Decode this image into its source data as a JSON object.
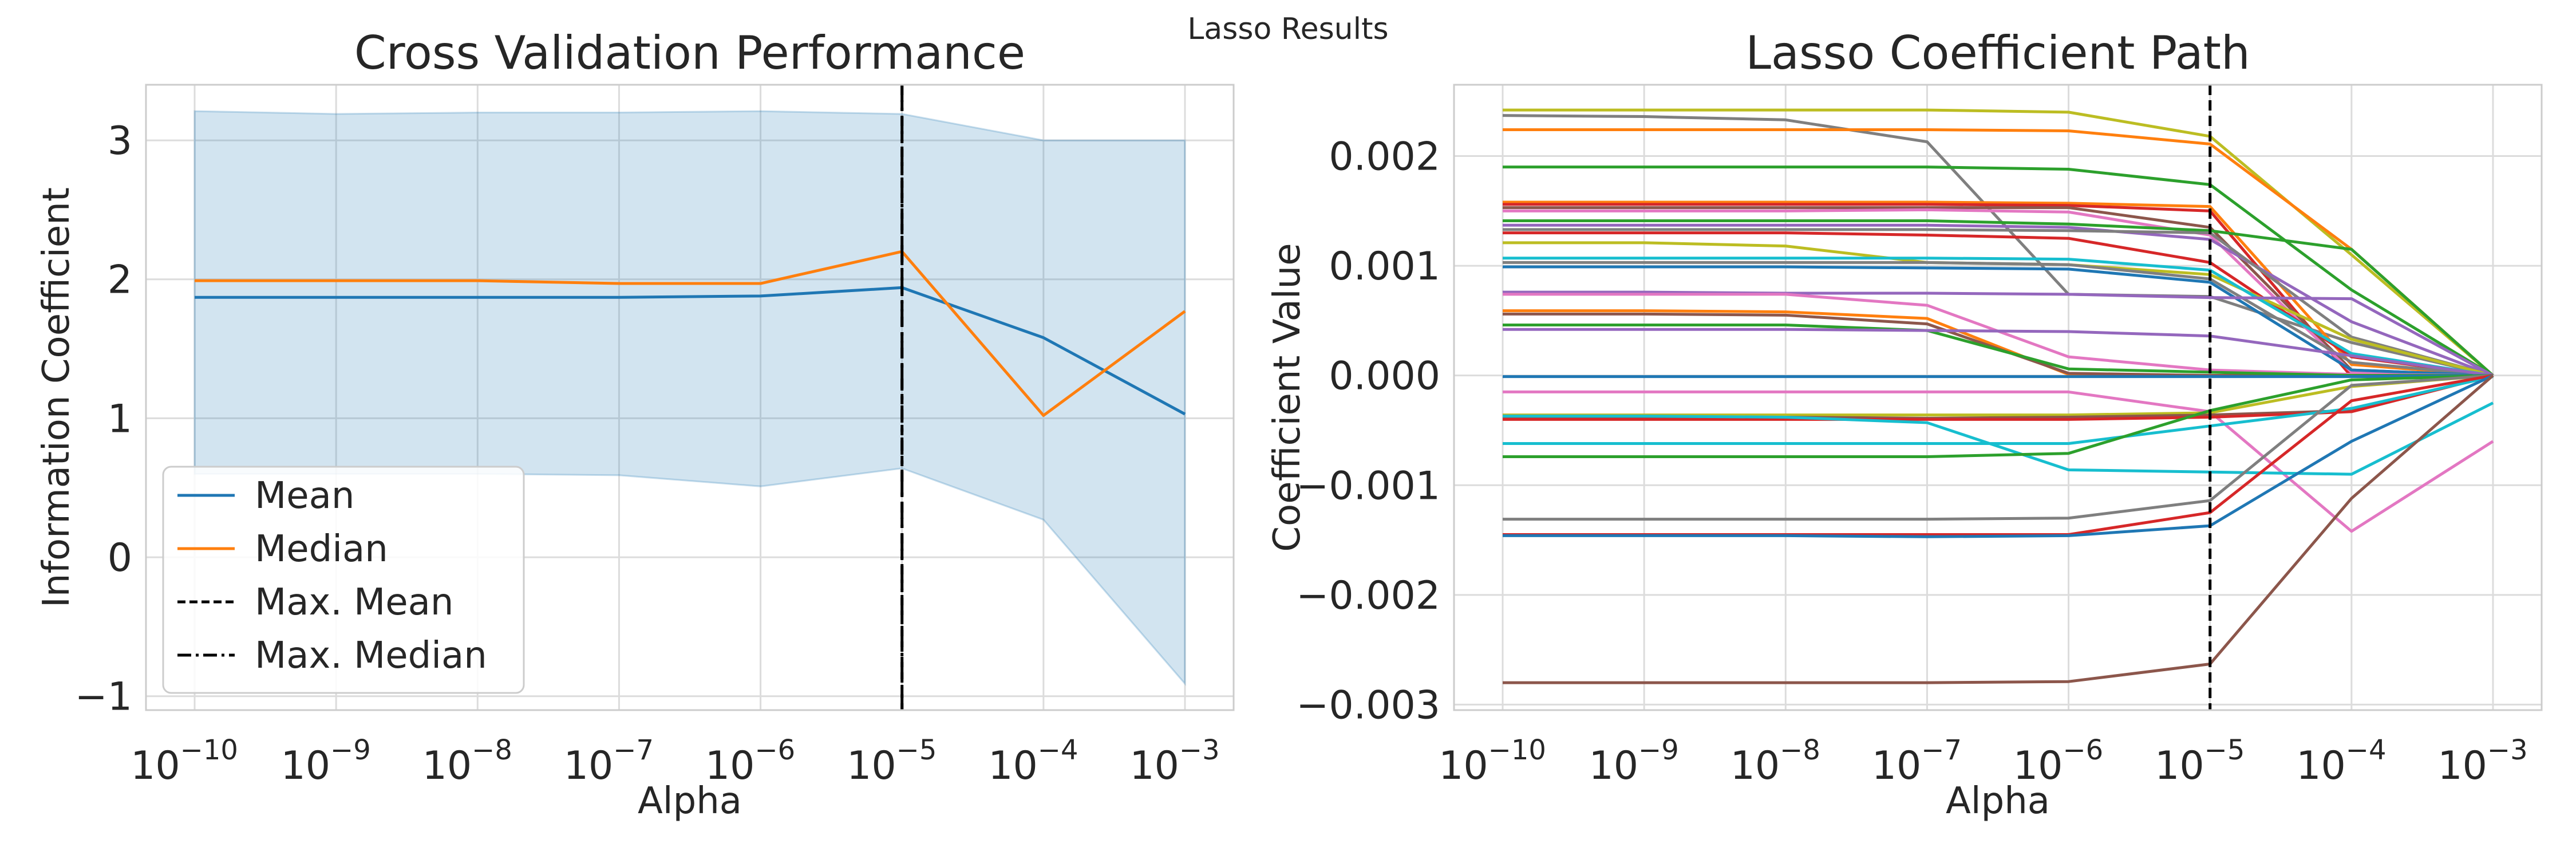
{
  "figure": {
    "suptitle": "Lasso Results"
  },
  "chart_data": [
    {
      "type": "line",
      "title": "Cross Validation Performance",
      "xlabel": "Alpha",
      "ylabel": "Information Coefficient",
      "xscale": "log",
      "x": [
        1e-10,
        1e-09,
        1e-08,
        1e-07,
        1e-06,
        1e-05,
        0.0001,
        0.001
      ],
      "xticks": [
        1e-10,
        1e-09,
        1e-08,
        1e-07,
        1e-06,
        1e-05,
        0.0001,
        0.001
      ],
      "xtick_exponents": [
        "−10",
        "−9",
        "−8",
        "−7",
        "−6",
        "−5",
        "−4",
        "−3"
      ],
      "ylim": [
        -1.1,
        3.4
      ],
      "yticks": [
        -1,
        0,
        1,
        2,
        3
      ],
      "ytick_labels": [
        "−1",
        "0",
        "1",
        "2",
        "3"
      ],
      "grid": true,
      "legend_position": "lower-left",
      "series": [
        {
          "name": "Mean",
          "color": "#1f77b4",
          "values": [
            1.87,
            1.87,
            1.87,
            1.87,
            1.88,
            1.94,
            1.58,
            1.03
          ]
        },
        {
          "name": "Median",
          "color": "#ff7f0e",
          "values": [
            1.99,
            1.99,
            1.99,
            1.97,
            1.97,
            2.2,
            1.02,
            1.77
          ]
        }
      ],
      "band": {
        "color": "#1f77b4",
        "opacity": 0.2,
        "upper": [
          3.21,
          3.19,
          3.2,
          3.2,
          3.21,
          3.19,
          3.0,
          3.0
        ],
        "lower": [
          0.6,
          0.6,
          0.6,
          0.59,
          0.51,
          0.64,
          0.27,
          -0.91
        ]
      },
      "vlines": [
        {
          "name": "Max. Mean",
          "x": 1e-05,
          "style": "dashed",
          "color": "#000000"
        },
        {
          "name": "Max. Median",
          "x": 1e-05,
          "style": "dashdot",
          "color": "#000000"
        }
      ]
    },
    {
      "type": "line",
      "title": "Lasso Coefficient Path",
      "xlabel": "Alpha",
      "ylabel": "Coefficient Value",
      "xscale": "log",
      "x": [
        1e-10,
        1e-09,
        1e-08,
        1e-07,
        1e-06,
        1e-05,
        0.0001,
        0.001
      ],
      "xticks": [
        1e-10,
        1e-09,
        1e-08,
        1e-07,
        1e-06,
        1e-05,
        0.0001,
        0.001
      ],
      "xtick_exponents": [
        "−10",
        "−9",
        "−8",
        "−7",
        "−6",
        "−5",
        "−4",
        "−3"
      ],
      "ylim": [
        -0.00305,
        0.00265
      ],
      "yticks": [
        -0.003,
        -0.002,
        -0.001,
        0.0,
        0.001,
        0.002
      ],
      "ytick_labels": [
        "−0.003",
        "−0.002",
        "−0.001",
        "0.000",
        "0.001",
        "0.002"
      ],
      "grid": true,
      "vlines": [
        {
          "x": 1e-05,
          "style": "dashed",
          "color": "#000000"
        }
      ],
      "series": [
        {
          "color": "#bcbd22",
          "values": [
            0.00242,
            0.00242,
            0.00242,
            0.00242,
            0.0024,
            0.00218,
            0.0011,
            0.0
          ]
        },
        {
          "color": "#7f7f7f",
          "values": [
            0.00237,
            0.00236,
            0.00233,
            0.00213,
            0.00074,
            0.00072,
            0.0003,
            0.0
          ]
        },
        {
          "color": "#ff7f0e",
          "values": [
            0.00224,
            0.00224,
            0.00224,
            0.00224,
            0.00223,
            0.00211,
            0.00115,
            0.0
          ]
        },
        {
          "color": "#2ca02c",
          "values": [
            0.0019,
            0.0019,
            0.0019,
            0.0019,
            0.00188,
            0.00174,
            0.00078,
            0.0
          ]
        },
        {
          "color": "#ff7f0e",
          "values": [
            0.00158,
            0.00158,
            0.00158,
            0.00158,
            0.00157,
            0.00154,
            0.0001,
            0.0
          ]
        },
        {
          "color": "#d62728",
          "values": [
            0.00156,
            0.00156,
            0.00156,
            0.00156,
            0.00155,
            0.0015,
            -1e-05,
            0.0
          ]
        },
        {
          "color": "#8c564b",
          "values": [
            0.00153,
            0.00153,
            0.00153,
            0.00153,
            0.00153,
            0.00135,
            5e-05,
            0.0
          ]
        },
        {
          "color": "#e377c2",
          "values": [
            0.0015,
            0.0015,
            0.0015,
            0.00151,
            0.00149,
            0.00128,
            3e-05,
            0.0
          ]
        },
        {
          "color": "#2ca02c",
          "values": [
            0.00141,
            0.00141,
            0.00141,
            0.00141,
            0.00138,
            0.00132,
            0.00115,
            0.0
          ]
        },
        {
          "color": "#9467bd",
          "values": [
            0.00137,
            0.00137,
            0.00137,
            0.00137,
            0.00135,
            0.00124,
            0.00049,
            0.0
          ]
        },
        {
          "color": "#7f7f7f",
          "values": [
            0.00133,
            0.00133,
            0.00133,
            0.00133,
            0.00132,
            0.0013,
            0.00035,
            0.0
          ]
        },
        {
          "color": "#d62728",
          "values": [
            0.0013,
            0.0013,
            0.0013,
            0.00128,
            0.00125,
            0.00103,
            0.00017,
            0.0
          ]
        },
        {
          "color": "#bcbd22",
          "values": [
            0.00121,
            0.00121,
            0.00118,
            0.00103,
            0.00101,
            0.00092,
            0.00033,
            0.0
          ]
        },
        {
          "color": "#17becf",
          "values": [
            0.00107,
            0.00107,
            0.00107,
            0.00107,
            0.00106,
            0.00096,
            0.0002,
            0.0
          ]
        },
        {
          "color": "#7f7f7f",
          "values": [
            0.00103,
            0.00103,
            0.00103,
            0.00103,
            0.00101,
            0.00088,
            0.00012,
            0.0
          ]
        },
        {
          "color": "#1f77b4",
          "values": [
            0.00099,
            0.00099,
            0.00099,
            0.00098,
            0.00097,
            0.00085,
            5e-05,
            0.0
          ]
        },
        {
          "color": "#9467bd",
          "values": [
            0.00076,
            0.00076,
            0.00075,
            0.00075,
            0.00074,
            0.00071,
            0.0007,
            0.0
          ]
        },
        {
          "color": "#e377c2",
          "values": [
            0.00074,
            0.00074,
            0.00074,
            0.00064,
            0.00017,
            5e-05,
            1e-05,
            0.0
          ]
        },
        {
          "color": "#ff7f0e",
          "values": [
            0.00059,
            0.00059,
            0.00058,
            0.00052,
            1e-05,
            0.0,
            0.0,
            0.0
          ]
        },
        {
          "color": "#8c564b",
          "values": [
            0.00056,
            0.00056,
            0.00055,
            0.00047,
            2e-05,
            0.0,
            0.0,
            0.0
          ]
        },
        {
          "color": "#2ca02c",
          "values": [
            0.00046,
            0.00046,
            0.00046,
            0.00041,
            6e-05,
            3e-05,
            0.0,
            0.0
          ]
        },
        {
          "color": "#9467bd",
          "values": [
            0.00042,
            0.00042,
            0.00042,
            0.00041,
            0.0004,
            0.00036,
            0.00018,
            0.0
          ]
        },
        {
          "color": "#1f77b4",
          "values": [
            -1e-05,
            -1e-05,
            -1e-05,
            -1e-05,
            -1e-05,
            -1e-05,
            -1e-05,
            0.0
          ]
        },
        {
          "color": "#e377c2",
          "values": [
            -0.00015,
            -0.00015,
            -0.00015,
            -0.00015,
            -0.00015,
            -0.00033,
            -0.00142,
            -0.0006
          ]
        },
        {
          "color": "#bcbd22",
          "values": [
            -0.00036,
            -0.00036,
            -0.00036,
            -0.00036,
            -0.00036,
            -0.00034,
            -0.0001,
            0.0
          ]
        },
        {
          "color": "#8c564b",
          "values": [
            -0.00038,
            -0.00038,
            -0.00038,
            -0.00039,
            -0.00038,
            -0.00036,
            -0.00032,
            0.0
          ]
        },
        {
          "color": "#d62728",
          "values": [
            -0.0004,
            -0.0004,
            -0.0004,
            -0.0004,
            -0.0004,
            -0.00038,
            -0.00033,
            0.0
          ]
        },
        {
          "color": "#17becf",
          "values": [
            -0.00062,
            -0.00062,
            -0.00062,
            -0.00062,
            -0.00062,
            -0.00046,
            -0.0003,
            -1e-05
          ]
        },
        {
          "color": "#17becf",
          "values": [
            -0.00037,
            -0.00037,
            -0.00038,
            -0.00043,
            -0.00086,
            -0.00088,
            -0.0009,
            -0.00025
          ]
        },
        {
          "color": "#2ca02c",
          "values": [
            -0.00074,
            -0.00074,
            -0.00074,
            -0.00074,
            -0.00071,
            -0.00032,
            -4e-05,
            0.0
          ]
        },
        {
          "color": "#7f7f7f",
          "values": [
            -0.00131,
            -0.00131,
            -0.00131,
            -0.00131,
            -0.0013,
            -0.00114,
            -9e-05,
            0.0
          ]
        },
        {
          "color": "#d62728",
          "values": [
            -0.00145,
            -0.00145,
            -0.00145,
            -0.00145,
            -0.00145,
            -0.00125,
            -0.00023,
            0.0
          ]
        },
        {
          "color": "#1f77b4",
          "values": [
            -0.00146,
            -0.00146,
            -0.00146,
            -0.00147,
            -0.00146,
            -0.00137,
            -0.0006,
            0.0
          ]
        },
        {
          "color": "#8c564b",
          "values": [
            -0.0028,
            -0.0028,
            -0.0028,
            -0.0028,
            -0.00279,
            -0.00263,
            -0.00112,
            0.0
          ]
        }
      ]
    }
  ]
}
